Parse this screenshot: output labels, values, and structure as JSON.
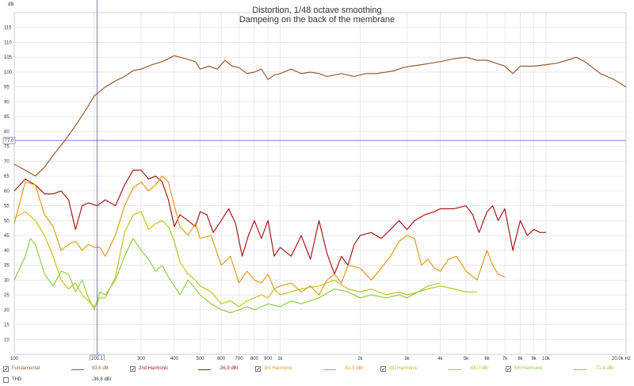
{
  "chart_data": {
    "type": "line",
    "title": "Distortion, 1/48 octave smoothing",
    "subtitle": "Dampeing on the back of the membrane",
    "ylabel": "dB",
    "ylim": [
      5,
      120
    ],
    "xlim": [
      100,
      20000
    ],
    "x_scale": "log",
    "grid": true,
    "x_ticks": [
      {
        "v": 100,
        "t": "100"
      },
      {
        "v": 200,
        "t": "200"
      },
      {
        "v": 300,
        "t": "300"
      },
      {
        "v": 400,
        "t": "400"
      },
      {
        "v": 500,
        "t": "500"
      },
      {
        "v": 600,
        "t": "600"
      },
      {
        "v": 700,
        "t": "700"
      },
      {
        "v": 800,
        "t": "800"
      },
      {
        "v": 900,
        "t": "900"
      },
      {
        "v": 1000,
        "t": "1k"
      },
      {
        "v": 2000,
        "t": "2k"
      },
      {
        "v": 3000,
        "t": "3k"
      },
      {
        "v": 4000,
        "t": "4k"
      },
      {
        "v": 5000,
        "t": "5k"
      },
      {
        "v": 6000,
        "t": "6k"
      },
      {
        "v": 7000,
        "t": "7k"
      },
      {
        "v": 8000,
        "t": "8k"
      },
      {
        "v": 9000,
        "t": "9k"
      },
      {
        "v": 10000,
        "t": "10k"
      },
      {
        "v": 20000,
        "t": "20.0k Hz"
      }
    ],
    "y_ticks": [
      10,
      15,
      20,
      25,
      30,
      35,
      40,
      45,
      50,
      55,
      60,
      65,
      70,
      75,
      80,
      85,
      90,
      95,
      100,
      105,
      110,
      115
    ],
    "cursor": {
      "x": 205.1,
      "x_label": "205.1",
      "y": 77.0,
      "y_label": "77.0"
    },
    "series": [
      {
        "name": "Fundamental",
        "value": "93,6 dB",
        "color": "#9a5a2c",
        "checked": true,
        "points": [
          [
            100,
            69
          ],
          [
            110,
            67
          ],
          [
            120,
            65
          ],
          [
            130,
            68
          ],
          [
            140,
            72
          ],
          [
            155,
            77
          ],
          [
            170,
            82
          ],
          [
            185,
            87
          ],
          [
            200,
            92
          ],
          [
            220,
            95
          ],
          [
            240,
            97
          ],
          [
            260,
            98.5
          ],
          [
            280,
            100.5
          ],
          [
            300,
            101
          ],
          [
            330,
            102.5
          ],
          [
            360,
            103.5
          ],
          [
            400,
            105.5
          ],
          [
            440,
            104.5
          ],
          [
            480,
            103.5
          ],
          [
            500,
            101
          ],
          [
            540,
            102
          ],
          [
            580,
            101
          ],
          [
            620,
            104
          ],
          [
            660,
            102
          ],
          [
            700,
            101.5
          ],
          [
            750,
            99.5
          ],
          [
            800,
            100
          ],
          [
            850,
            101
          ],
          [
            900,
            97.5
          ],
          [
            950,
            99
          ],
          [
            1000,
            99.5
          ],
          [
            1100,
            101
          ],
          [
            1200,
            99.5
          ],
          [
            1300,
            100
          ],
          [
            1400,
            99.5
          ],
          [
            1500,
            98.5
          ],
          [
            1700,
            99.5
          ],
          [
            1900,
            98.5
          ],
          [
            2100,
            99.5
          ],
          [
            2300,
            99.5
          ],
          [
            2500,
            100
          ],
          [
            2700,
            100.5
          ],
          [
            2900,
            101.5
          ],
          [
            3100,
            102
          ],
          [
            3400,
            102.5
          ],
          [
            3700,
            103
          ],
          [
            4000,
            103.5
          ],
          [
            4500,
            104.5
          ],
          [
            5000,
            105
          ],
          [
            5500,
            104
          ],
          [
            6000,
            104
          ],
          [
            7000,
            102
          ],
          [
            7500,
            99.5
          ],
          [
            8000,
            102
          ],
          [
            9000,
            102
          ],
          [
            10000,
            102.5
          ],
          [
            11000,
            103
          ],
          [
            12000,
            104
          ],
          [
            13000,
            105
          ],
          [
            14000,
            103.5
          ],
          [
            16000,
            99.5
          ],
          [
            18000,
            97.5
          ],
          [
            20000,
            95
          ]
        ]
      },
      {
        "name": "2nd Harmonic",
        "value": "-36,9 dBr",
        "color": "#a81818",
        "checked": true,
        "points": [
          [
            100,
            60
          ],
          [
            110,
            64
          ],
          [
            120,
            62
          ],
          [
            130,
            59
          ],
          [
            140,
            59
          ],
          [
            150,
            60
          ],
          [
            160,
            57
          ],
          [
            170,
            47
          ],
          [
            180,
            55
          ],
          [
            190,
            56
          ],
          [
            205,
            55
          ],
          [
            220,
            57
          ],
          [
            230,
            56
          ],
          [
            240,
            55
          ],
          [
            260,
            62
          ],
          [
            280,
            67
          ],
          [
            300,
            67
          ],
          [
            320,
            64
          ],
          [
            340,
            65
          ],
          [
            360,
            63
          ],
          [
            380,
            57
          ],
          [
            400,
            48
          ],
          [
            420,
            52
          ],
          [
            450,
            50
          ],
          [
            480,
            48
          ],
          [
            500,
            53
          ],
          [
            530,
            52
          ],
          [
            560,
            46
          ],
          [
            600,
            50
          ],
          [
            640,
            54
          ],
          [
            680,
            49
          ],
          [
            720,
            38
          ],
          [
            760,
            45
          ],
          [
            800,
            50
          ],
          [
            850,
            44
          ],
          [
            900,
            50
          ],
          [
            950,
            38
          ],
          [
            1000,
            41
          ],
          [
            1100,
            38
          ],
          [
            1200,
            45
          ],
          [
            1300,
            37
          ],
          [
            1400,
            50
          ],
          [
            1500,
            39
          ],
          [
            1600,
            32
          ],
          [
            1700,
            38
          ],
          [
            1800,
            35
          ],
          [
            1900,
            42
          ],
          [
            2000,
            45
          ],
          [
            2200,
            46
          ],
          [
            2400,
            44
          ],
          [
            2600,
            47
          ],
          [
            2800,
            50
          ],
          [
            3000,
            47
          ],
          [
            3200,
            50
          ],
          [
            3500,
            52
          ],
          [
            3800,
            53
          ],
          [
            4000,
            54
          ],
          [
            4500,
            54
          ],
          [
            5000,
            55
          ],
          [
            5300,
            52
          ],
          [
            5600,
            46
          ],
          [
            6000,
            53
          ],
          [
            6300,
            55
          ],
          [
            6600,
            50
          ],
          [
            7000,
            54
          ],
          [
            7500,
            40
          ],
          [
            8000,
            50
          ],
          [
            8500,
            45
          ],
          [
            9000,
            47
          ],
          [
            9500,
            46
          ],
          [
            10000,
            46
          ]
        ]
      },
      {
        "name": "3rd Harmonic",
        "value": "-52,5 dBr",
        "color": "#e59a1e",
        "checked": true,
        "points": [
          [
            100,
            49
          ],
          [
            110,
            63
          ],
          [
            120,
            62
          ],
          [
            130,
            52
          ],
          [
            140,
            48
          ],
          [
            150,
            40
          ],
          [
            160,
            42
          ],
          [
            170,
            43
          ],
          [
            180,
            40
          ],
          [
            190,
            42
          ],
          [
            200,
            41
          ],
          [
            210,
            41
          ],
          [
            220,
            38
          ],
          [
            240,
            45
          ],
          [
            260,
            55
          ],
          [
            280,
            61
          ],
          [
            300,
            63
          ],
          [
            320,
            60
          ],
          [
            340,
            62
          ],
          [
            360,
            65
          ],
          [
            380,
            63
          ],
          [
            400,
            55
          ],
          [
            420,
            48
          ],
          [
            450,
            45
          ],
          [
            480,
            49
          ],
          [
            500,
            44
          ],
          [
            550,
            45
          ],
          [
            600,
            35
          ],
          [
            650,
            38
          ],
          [
            700,
            29
          ],
          [
            750,
            33
          ],
          [
            800,
            30
          ],
          [
            850,
            29
          ],
          [
            900,
            32
          ],
          [
            950,
            27
          ],
          [
            1000,
            28
          ],
          [
            1100,
            29
          ],
          [
            1200,
            26
          ],
          [
            1300,
            28
          ],
          [
            1400,
            25
          ],
          [
            1500,
            30
          ],
          [
            1600,
            32
          ],
          [
            1700,
            29
          ],
          [
            1800,
            35
          ],
          [
            2000,
            34
          ],
          [
            2200,
            30
          ],
          [
            2400,
            34
          ],
          [
            2600,
            38
          ],
          [
            2800,
            43
          ],
          [
            3000,
            45
          ],
          [
            3200,
            44
          ],
          [
            3400,
            35
          ],
          [
            3600,
            37
          ],
          [
            3800,
            34
          ],
          [
            4000,
            33
          ],
          [
            4300,
            37
          ],
          [
            4600,
            38
          ],
          [
            5000,
            33
          ],
          [
            5500,
            30
          ],
          [
            6000,
            40
          ],
          [
            6300,
            35
          ],
          [
            6600,
            32
          ],
          [
            7000,
            31
          ]
        ]
      },
      {
        "name": "4th Harmonic",
        "value": "-64,0 dBr",
        "color": "#c7c21c",
        "checked": true,
        "points": [
          [
            100,
            51
          ],
          [
            110,
            53
          ],
          [
            120,
            50
          ],
          [
            130,
            45
          ],
          [
            140,
            38
          ],
          [
            150,
            30
          ],
          [
            160,
            27
          ],
          [
            170,
            29
          ],
          [
            180,
            25
          ],
          [
            190,
            23
          ],
          [
            200,
            21
          ],
          [
            210,
            24
          ],
          [
            220,
            24
          ],
          [
            240,
            31
          ],
          [
            260,
            46
          ],
          [
            280,
            52
          ],
          [
            300,
            53
          ],
          [
            320,
            47
          ],
          [
            340,
            49
          ],
          [
            360,
            50
          ],
          [
            380,
            48
          ],
          [
            400,
            43
          ],
          [
            420,
            36
          ],
          [
            450,
            32
          ],
          [
            480,
            30
          ],
          [
            500,
            28
          ],
          [
            550,
            26
          ],
          [
            600,
            22
          ],
          [
            650,
            23
          ],
          [
            700,
            21
          ],
          [
            750,
            23
          ],
          [
            800,
            24
          ],
          [
            850,
            25
          ],
          [
            900,
            24
          ],
          [
            950,
            27
          ],
          [
            1000,
            25
          ],
          [
            1100,
            26
          ],
          [
            1200,
            27
          ],
          [
            1400,
            28
          ],
          [
            1600,
            30
          ],
          [
            1800,
            27
          ],
          [
            2000,
            26
          ],
          [
            2200,
            27
          ],
          [
            2500,
            25
          ],
          [
            2800,
            26
          ],
          [
            3000,
            25
          ],
          [
            3300,
            26
          ],
          [
            3600,
            27
          ],
          [
            4000,
            28
          ],
          [
            4500,
            27
          ],
          [
            5000,
            26
          ],
          [
            5500,
            26
          ]
        ]
      },
      {
        "name": "5th Harmonic",
        "value": "-71,4 dBr",
        "color": "#8fcd45",
        "checked": true,
        "points": [
          [
            100,
            30
          ],
          [
            110,
            38
          ],
          [
            115,
            44
          ],
          [
            120,
            42
          ],
          [
            130,
            32
          ],
          [
            140,
            28
          ],
          [
            150,
            33
          ],
          [
            160,
            32
          ],
          [
            170,
            26
          ],
          [
            180,
            30
          ],
          [
            190,
            24
          ],
          [
            200,
            20
          ],
          [
            210,
            26
          ],
          [
            220,
            25
          ],
          [
            240,
            30
          ],
          [
            260,
            38
          ],
          [
            280,
            44
          ],
          [
            300,
            40
          ],
          [
            320,
            37
          ],
          [
            340,
            33
          ],
          [
            360,
            35
          ],
          [
            380,
            31
          ],
          [
            400,
            28
          ],
          [
            420,
            25
          ],
          [
            450,
            30
          ],
          [
            480,
            27
          ],
          [
            500,
            25
          ],
          [
            550,
            22
          ],
          [
            600,
            20
          ],
          [
            650,
            19
          ],
          [
            700,
            20
          ],
          [
            750,
            21
          ],
          [
            800,
            20
          ],
          [
            850,
            21
          ],
          [
            900,
            22
          ],
          [
            1000,
            21
          ],
          [
            1100,
            23
          ],
          [
            1200,
            22
          ],
          [
            1400,
            24
          ],
          [
            1600,
            27
          ],
          [
            1800,
            26
          ],
          [
            2000,
            24
          ],
          [
            2200,
            25
          ],
          [
            2500,
            24
          ],
          [
            2800,
            25
          ],
          [
            3000,
            24
          ],
          [
            3300,
            26
          ],
          [
            3600,
            28
          ],
          [
            4000,
            29
          ]
        ]
      },
      {
        "name": "THD",
        "value": "-36,8 dBr",
        "color": "#666666",
        "checked": false,
        "points": []
      }
    ]
  }
}
